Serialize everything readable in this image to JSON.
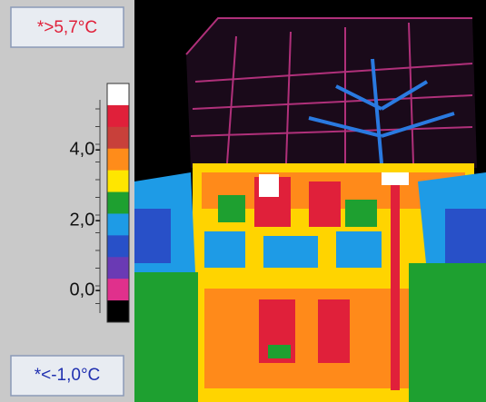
{
  "scale": {
    "max_label": "*>5,7°C",
    "min_label": "*<-1,0°C",
    "tick_labels": [
      "4,0-",
      "2,0-",
      "0,0-"
    ],
    "colors": [
      "#ffffff",
      "#e0203a",
      "#c8403a",
      "#ff8c1a",
      "#ffe600",
      "#1ea030",
      "#1e9be6",
      "#2850c8",
      "#6a3ab4",
      "#e0308c",
      "#000000"
    ]
  }
}
